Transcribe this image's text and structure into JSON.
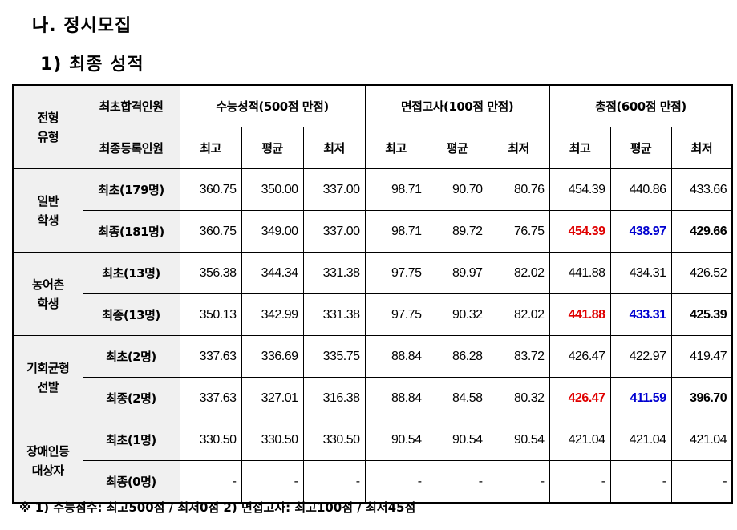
{
  "heading1": "나. 정시모집",
  "heading2": "1) 최종 성적",
  "table": {
    "type_header": [
      "전형",
      "유형"
    ],
    "count_header_1": "최초합격인원",
    "count_header_2": "최종등록인원",
    "group_headers": [
      "수능성적(500점 만점)",
      "면접고사(100점 만점)",
      "총점(600점 만점)"
    ],
    "sub_headers": [
      "최고",
      "평균",
      "최저",
      "최고",
      "평균",
      "최저",
      "최고",
      "평균",
      "최저"
    ],
    "groups": [
      {
        "type": [
          "일반",
          "학생"
        ],
        "rows": [
          {
            "label": "최초(179명)",
            "values": [
              "360.75",
              "350.00",
              "337.00",
              "98.71",
              "90.70",
              "80.76",
              "454.39",
              "440.86",
              "433.66"
            ]
          },
          {
            "label": "최종(181명)",
            "values": [
              "360.75",
              "349.00",
              "337.00",
              "98.71",
              "89.72",
              "76.75",
              "454.39",
              "438.97",
              "429.66"
            ]
          }
        ]
      },
      {
        "type": [
          "농어촌",
          "학생"
        ],
        "rows": [
          {
            "label": "최초(13명)",
            "values": [
              "356.38",
              "344.34",
              "331.38",
              "97.75",
              "89.97",
              "82.02",
              "441.88",
              "434.31",
              "426.52"
            ]
          },
          {
            "label": "최종(13명)",
            "values": [
              "350.13",
              "342.99",
              "331.38",
              "97.75",
              "90.32",
              "82.02",
              "441.88",
              "433.31",
              "425.39"
            ]
          }
        ]
      },
      {
        "type": [
          "기회균형",
          "선발"
        ],
        "rows": [
          {
            "label": "최초(2명)",
            "values": [
              "337.63",
              "336.69",
              "335.75",
              "88.84",
              "86.28",
              "83.72",
              "426.47",
              "422.97",
              "419.47"
            ]
          },
          {
            "label": "최종(2명)",
            "values": [
              "337.63",
              "327.01",
              "316.38",
              "88.84",
              "84.58",
              "80.32",
              "426.47",
              "411.59",
              "396.70"
            ]
          }
        ]
      },
      {
        "type": [
          "장애인등",
          "대상자"
        ],
        "rows": [
          {
            "label": "최초(1명)",
            "values": [
              "330.50",
              "330.50",
              "330.50",
              "90.54",
              "90.54",
              "90.54",
              "421.04",
              "421.04",
              "421.04"
            ]
          },
          {
            "label": "최종(0명)",
            "values": [
              "-",
              "-",
              "-",
              "-",
              "-",
              "-",
              "-",
              "-",
              "-"
            ]
          }
        ]
      }
    ]
  },
  "footnote": "※ 1) 수능점수: 최고500점 / 최저0점   2) 면접고사: 최고100점 / 최저45점",
  "colors": {
    "highlight_max": "#e00000",
    "highlight_avg": "#0000d0",
    "header_bg": "#f0f0f0"
  }
}
